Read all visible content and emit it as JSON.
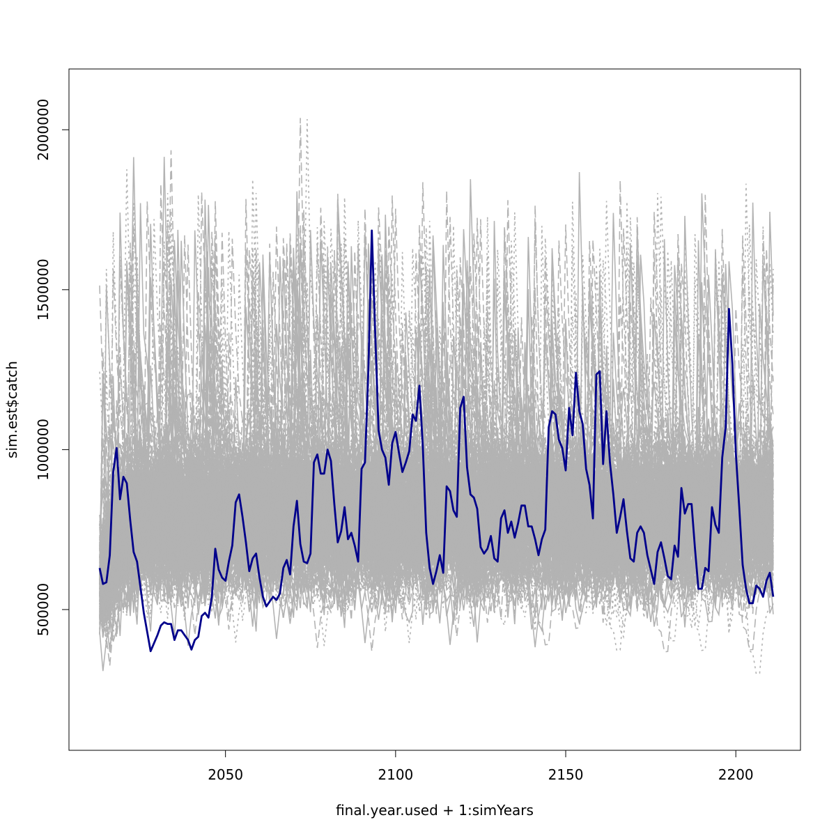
{
  "chart_data": {
    "type": "line",
    "title": "",
    "xlabel": "final.year.used + 1:simYears",
    "ylabel": "sim.est$catch",
    "xlim": [
      2004,
      2219
    ],
    "ylim": [
      60000,
      2190000
    ],
    "x_ticks": [
      2050,
      2100,
      2150,
      2200
    ],
    "x_tick_labels": [
      "2050",
      "2100",
      "2150",
      "2200"
    ],
    "y_ticks": [
      500000,
      1000000,
      1500000,
      2000000
    ],
    "y_tick_labels": [
      "500000",
      "1000000",
      "1500000",
      "2000000"
    ],
    "grid": false,
    "legend": "none",
    "colors": {
      "background_series": "#b3b3b3",
      "highlight_series": "#00008b",
      "frame": "#000000"
    },
    "background_series": {
      "description": "many simulated trajectories (grey, solid/dashed/dotted)",
      "x_start": 2013,
      "x_end": 2211,
      "typical_range": [
        450000,
        1300000
      ],
      "min_observed": 110000,
      "max_observed": 2100000
    },
    "series": [
      {
        "x_start": 2013,
        "x_end": 2211,
        "values": [
          630000,
          580000,
          585000,
          670000,
          930000,
          1005000,
          845000,
          915000,
          895000,
          780000,
          680000,
          650000,
          570000,
          490000,
          430000,
          370000,
          395000,
          420000,
          450000,
          460000,
          455000,
          455000,
          405000,
          435000,
          435000,
          420000,
          405000,
          375000,
          405000,
          415000,
          480000,
          490000,
          475000,
          540000,
          690000,
          625000,
          600000,
          590000,
          650000,
          700000,
          835000,
          860000,
          790000,
          710000,
          620000,
          660000,
          675000,
          600000,
          540000,
          510000,
          525000,
          540000,
          530000,
          550000,
          630000,
          655000,
          610000,
          760000,
          840000,
          705000,
          650000,
          645000,
          675000,
          960000,
          985000,
          925000,
          925000,
          1000000,
          965000,
          830000,
          710000,
          745000,
          820000,
          720000,
          740000,
          700000,
          650000,
          940000,
          960000,
          1250000,
          1685000,
          1370000,
          1060000,
          1000000,
          975000,
          890000,
          1020000,
          1055000,
          990000,
          930000,
          960000,
          995000,
          1110000,
          1090000,
          1200000,
          1010000,
          740000,
          630000,
          580000,
          620000,
          670000,
          615000,
          885000,
          870000,
          810000,
          790000,
          1130000,
          1165000,
          945000,
          860000,
          850000,
          815000,
          695000,
          675000,
          690000,
          730000,
          660000,
          650000,
          785000,
          810000,
          740000,
          775000,
          725000,
          770000,
          825000,
          825000,
          760000,
          760000,
          720000,
          670000,
          720000,
          750000,
          1070000,
          1120000,
          1110000,
          1030000,
          1005000,
          935000,
          1130000,
          1045000,
          1240000,
          1120000,
          1080000,
          940000,
          890000,
          785000,
          1235000,
          1245000,
          955000,
          1120000,
          960000,
          860000,
          740000,
          790000,
          845000,
          745000,
          660000,
          650000,
          740000,
          760000,
          740000,
          670000,
          625000,
          580000,
          680000,
          710000,
          660000,
          605000,
          595000,
          700000,
          665000,
          880000,
          800000,
          830000,
          830000,
          690000,
          565000,
          565000,
          630000,
          620000,
          820000,
          765000,
          740000,
          975000,
          1070000,
          1440000,
          1265000,
          990000,
          820000,
          640000,
          565000,
          520000,
          520000,
          575000,
          565000,
          540000,
          590000,
          615000,
          540000
        ]
      }
    ]
  }
}
